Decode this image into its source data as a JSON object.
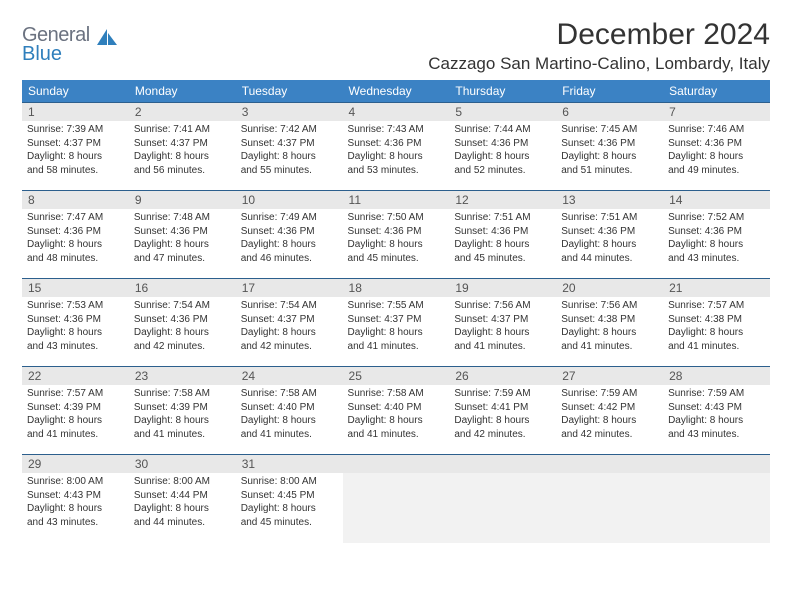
{
  "logo": {
    "general": "General",
    "blue": "Blue"
  },
  "title": "December 2024",
  "location": "Cazzago San Martino-Calino, Lombardy, Italy",
  "headers": [
    "Sunday",
    "Monday",
    "Tuesday",
    "Wednesday",
    "Thursday",
    "Friday",
    "Saturday"
  ],
  "colors": {
    "header_bg": "#3b82c4",
    "border": "#2c5f8d",
    "daynum_bg": "#e8e8e8"
  },
  "weeks": [
    [
      {
        "num": "1",
        "sunrise": "Sunrise: 7:39 AM",
        "sunset": "Sunset: 4:37 PM",
        "daylight1": "Daylight: 8 hours",
        "daylight2": "and 58 minutes."
      },
      {
        "num": "2",
        "sunrise": "Sunrise: 7:41 AM",
        "sunset": "Sunset: 4:37 PM",
        "daylight1": "Daylight: 8 hours",
        "daylight2": "and 56 minutes."
      },
      {
        "num": "3",
        "sunrise": "Sunrise: 7:42 AM",
        "sunset": "Sunset: 4:37 PM",
        "daylight1": "Daylight: 8 hours",
        "daylight2": "and 55 minutes."
      },
      {
        "num": "4",
        "sunrise": "Sunrise: 7:43 AM",
        "sunset": "Sunset: 4:36 PM",
        "daylight1": "Daylight: 8 hours",
        "daylight2": "and 53 minutes."
      },
      {
        "num": "5",
        "sunrise": "Sunrise: 7:44 AM",
        "sunset": "Sunset: 4:36 PM",
        "daylight1": "Daylight: 8 hours",
        "daylight2": "and 52 minutes."
      },
      {
        "num": "6",
        "sunrise": "Sunrise: 7:45 AM",
        "sunset": "Sunset: 4:36 PM",
        "daylight1": "Daylight: 8 hours",
        "daylight2": "and 51 minutes."
      },
      {
        "num": "7",
        "sunrise": "Sunrise: 7:46 AM",
        "sunset": "Sunset: 4:36 PM",
        "daylight1": "Daylight: 8 hours",
        "daylight2": "and 49 minutes."
      }
    ],
    [
      {
        "num": "8",
        "sunrise": "Sunrise: 7:47 AM",
        "sunset": "Sunset: 4:36 PM",
        "daylight1": "Daylight: 8 hours",
        "daylight2": "and 48 minutes."
      },
      {
        "num": "9",
        "sunrise": "Sunrise: 7:48 AM",
        "sunset": "Sunset: 4:36 PM",
        "daylight1": "Daylight: 8 hours",
        "daylight2": "and 47 minutes."
      },
      {
        "num": "10",
        "sunrise": "Sunrise: 7:49 AM",
        "sunset": "Sunset: 4:36 PM",
        "daylight1": "Daylight: 8 hours",
        "daylight2": "and 46 minutes."
      },
      {
        "num": "11",
        "sunrise": "Sunrise: 7:50 AM",
        "sunset": "Sunset: 4:36 PM",
        "daylight1": "Daylight: 8 hours",
        "daylight2": "and 45 minutes."
      },
      {
        "num": "12",
        "sunrise": "Sunrise: 7:51 AM",
        "sunset": "Sunset: 4:36 PM",
        "daylight1": "Daylight: 8 hours",
        "daylight2": "and 45 minutes."
      },
      {
        "num": "13",
        "sunrise": "Sunrise: 7:51 AM",
        "sunset": "Sunset: 4:36 PM",
        "daylight1": "Daylight: 8 hours",
        "daylight2": "and 44 minutes."
      },
      {
        "num": "14",
        "sunrise": "Sunrise: 7:52 AM",
        "sunset": "Sunset: 4:36 PM",
        "daylight1": "Daylight: 8 hours",
        "daylight2": "and 43 minutes."
      }
    ],
    [
      {
        "num": "15",
        "sunrise": "Sunrise: 7:53 AM",
        "sunset": "Sunset: 4:36 PM",
        "daylight1": "Daylight: 8 hours",
        "daylight2": "and 43 minutes."
      },
      {
        "num": "16",
        "sunrise": "Sunrise: 7:54 AM",
        "sunset": "Sunset: 4:36 PM",
        "daylight1": "Daylight: 8 hours",
        "daylight2": "and 42 minutes."
      },
      {
        "num": "17",
        "sunrise": "Sunrise: 7:54 AM",
        "sunset": "Sunset: 4:37 PM",
        "daylight1": "Daylight: 8 hours",
        "daylight2": "and 42 minutes."
      },
      {
        "num": "18",
        "sunrise": "Sunrise: 7:55 AM",
        "sunset": "Sunset: 4:37 PM",
        "daylight1": "Daylight: 8 hours",
        "daylight2": "and 41 minutes."
      },
      {
        "num": "19",
        "sunrise": "Sunrise: 7:56 AM",
        "sunset": "Sunset: 4:37 PM",
        "daylight1": "Daylight: 8 hours",
        "daylight2": "and 41 minutes."
      },
      {
        "num": "20",
        "sunrise": "Sunrise: 7:56 AM",
        "sunset": "Sunset: 4:38 PM",
        "daylight1": "Daylight: 8 hours",
        "daylight2": "and 41 minutes."
      },
      {
        "num": "21",
        "sunrise": "Sunrise: 7:57 AM",
        "sunset": "Sunset: 4:38 PM",
        "daylight1": "Daylight: 8 hours",
        "daylight2": "and 41 minutes."
      }
    ],
    [
      {
        "num": "22",
        "sunrise": "Sunrise: 7:57 AM",
        "sunset": "Sunset: 4:39 PM",
        "daylight1": "Daylight: 8 hours",
        "daylight2": "and 41 minutes."
      },
      {
        "num": "23",
        "sunrise": "Sunrise: 7:58 AM",
        "sunset": "Sunset: 4:39 PM",
        "daylight1": "Daylight: 8 hours",
        "daylight2": "and 41 minutes."
      },
      {
        "num": "24",
        "sunrise": "Sunrise: 7:58 AM",
        "sunset": "Sunset: 4:40 PM",
        "daylight1": "Daylight: 8 hours",
        "daylight2": "and 41 minutes."
      },
      {
        "num": "25",
        "sunrise": "Sunrise: 7:58 AM",
        "sunset": "Sunset: 4:40 PM",
        "daylight1": "Daylight: 8 hours",
        "daylight2": "and 41 minutes."
      },
      {
        "num": "26",
        "sunrise": "Sunrise: 7:59 AM",
        "sunset": "Sunset: 4:41 PM",
        "daylight1": "Daylight: 8 hours",
        "daylight2": "and 42 minutes."
      },
      {
        "num": "27",
        "sunrise": "Sunrise: 7:59 AM",
        "sunset": "Sunset: 4:42 PM",
        "daylight1": "Daylight: 8 hours",
        "daylight2": "and 42 minutes."
      },
      {
        "num": "28",
        "sunrise": "Sunrise: 7:59 AM",
        "sunset": "Sunset: 4:43 PM",
        "daylight1": "Daylight: 8 hours",
        "daylight2": "and 43 minutes."
      }
    ],
    [
      {
        "num": "29",
        "sunrise": "Sunrise: 8:00 AM",
        "sunset": "Sunset: 4:43 PM",
        "daylight1": "Daylight: 8 hours",
        "daylight2": "and 43 minutes."
      },
      {
        "num": "30",
        "sunrise": "Sunrise: 8:00 AM",
        "sunset": "Sunset: 4:44 PM",
        "daylight1": "Daylight: 8 hours",
        "daylight2": "and 44 minutes."
      },
      {
        "num": "31",
        "sunrise": "Sunrise: 8:00 AM",
        "sunset": "Sunset: 4:45 PM",
        "daylight1": "Daylight: 8 hours",
        "daylight2": "and 45 minutes."
      },
      {
        "empty": true
      },
      {
        "empty": true
      },
      {
        "empty": true
      },
      {
        "empty": true
      }
    ]
  ]
}
